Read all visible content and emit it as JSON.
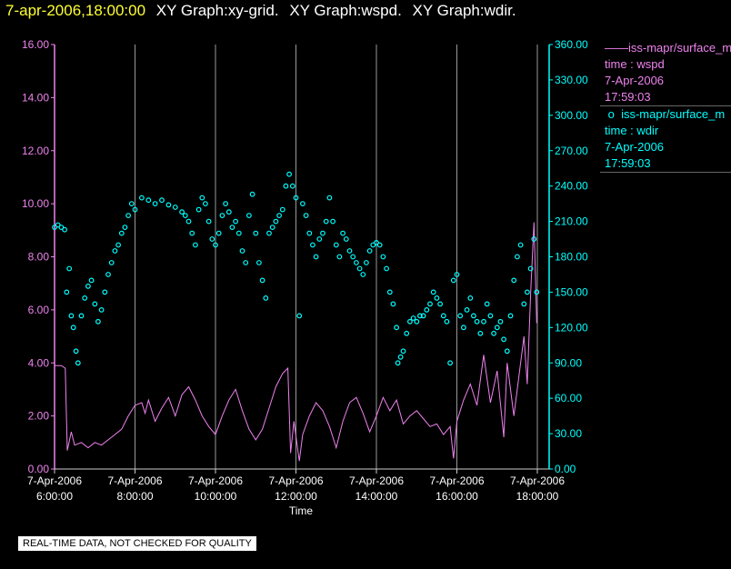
{
  "title": {
    "timestamp": "7-apr-2006,18:00:00",
    "graphs": [
      "XY Graph:xy-grid.",
      "XY Graph:wspd.",
      "XY Graph:wdir."
    ]
  },
  "legend": [
    {
      "marker": "line",
      "color": "#ee82ee",
      "label": "iss-mapr/surface_m",
      "lines": [
        "time : wspd",
        "7-Apr-2006",
        "17:59:03"
      ]
    },
    {
      "marker": "circle",
      "color": "#00ffff",
      "label": "iss-mapr/surface_m",
      "lines": [
        "time : wdir",
        "7-Apr-2006",
        "17:59:03"
      ]
    }
  ],
  "note": "REAL-TIME DATA, NOT CHECKED FOR QUALITY",
  "chart_data": {
    "type": "line",
    "xlabel": "Time",
    "x_ticks": [
      {
        "date": "7-Apr-2006",
        "time": "6:00:00"
      },
      {
        "date": "7-Apr-2006",
        "time": "8:00:00"
      },
      {
        "date": "7-Apr-2006",
        "time": "10:00:00"
      },
      {
        "date": "7-Apr-2006",
        "time": "12:00:00"
      },
      {
        "date": "7-Apr-2006",
        "time": "14:00:00"
      },
      {
        "date": "7-Apr-2006",
        "time": "16:00:00"
      },
      {
        "date": "7-Apr-2006",
        "time": "18:00:00"
      }
    ],
    "xlim": [
      "7-Apr-2006 6:00:00",
      "7-Apr-2006 18:00:00"
    ],
    "grid": "vertical lines at each x tick",
    "left_axis": {
      "color": "#ee82ee",
      "ylim": [
        0,
        16
      ],
      "tick_labels": [
        "0.00",
        "2.00",
        "4.00",
        "6.00",
        "8.00",
        "10.00",
        "12.00",
        "14.00",
        "16.00"
      ]
    },
    "right_axis": {
      "color": "#00ffff",
      "ylim": [
        0,
        360
      ],
      "tick_labels": [
        "0.00",
        "30.00",
        "60.00",
        "90.00",
        "120.00",
        "150.00",
        "180.00",
        "210.00",
        "240.00",
        "270.00",
        "300.00",
        "330.00",
        "360.00"
      ]
    },
    "series": [
      {
        "axis": "left",
        "style": "line",
        "color": "#ee82ee",
        "points": [
          [
            "06:00",
            3.9
          ],
          [
            "06:10",
            3.9
          ],
          [
            "06:16",
            3.8
          ],
          [
            "06:19",
            0.7
          ],
          [
            "06:25",
            1.4
          ],
          [
            "06:30",
            0.9
          ],
          [
            "06:40",
            1.0
          ],
          [
            "06:50",
            0.8
          ],
          [
            "07:00",
            1.0
          ],
          [
            "07:10",
            0.9
          ],
          [
            "07:20",
            1.1
          ],
          [
            "07:30",
            1.3
          ],
          [
            "07:40",
            1.5
          ],
          [
            "07:50",
            2.0
          ],
          [
            "08:00",
            2.4
          ],
          [
            "08:10",
            2.5
          ],
          [
            "08:15",
            2.1
          ],
          [
            "08:20",
            2.6
          ],
          [
            "08:30",
            1.8
          ],
          [
            "08:40",
            2.3
          ],
          [
            "08:50",
            2.7
          ],
          [
            "09:00",
            2.0
          ],
          [
            "09:10",
            2.8
          ],
          [
            "09:20",
            3.1
          ],
          [
            "09:30",
            2.6
          ],
          [
            "09:40",
            2.0
          ],
          [
            "09:50",
            1.6
          ],
          [
            "10:00",
            1.3
          ],
          [
            "10:10",
            2.0
          ],
          [
            "10:20",
            2.6
          ],
          [
            "10:30",
            3.0
          ],
          [
            "10:40",
            2.2
          ],
          [
            "10:50",
            1.5
          ],
          [
            "11:00",
            1.1
          ],
          [
            "11:10",
            1.5
          ],
          [
            "11:20",
            2.3
          ],
          [
            "11:30",
            3.1
          ],
          [
            "11:40",
            3.6
          ],
          [
            "11:48",
            3.8
          ],
          [
            "11:52",
            0.6
          ],
          [
            "11:57",
            1.8
          ],
          [
            "12:05",
            0.3
          ],
          [
            "12:10",
            1.3
          ],
          [
            "12:20",
            2.0
          ],
          [
            "12:30",
            2.5
          ],
          [
            "12:40",
            2.2
          ],
          [
            "12:50",
            1.6
          ],
          [
            "13:00",
            0.8
          ],
          [
            "13:10",
            1.8
          ],
          [
            "13:20",
            2.5
          ],
          [
            "13:30",
            2.7
          ],
          [
            "13:40",
            2.1
          ],
          [
            "13:50",
            1.4
          ],
          [
            "14:00",
            2.0
          ],
          [
            "14:10",
            2.7
          ],
          [
            "14:20",
            2.2
          ],
          [
            "14:30",
            2.6
          ],
          [
            "14:40",
            1.7
          ],
          [
            "14:50",
            2.0
          ],
          [
            "15:00",
            2.2
          ],
          [
            "15:10",
            1.9
          ],
          [
            "15:20",
            1.6
          ],
          [
            "15:30",
            1.7
          ],
          [
            "15:40",
            1.3
          ],
          [
            "15:50",
            1.6
          ],
          [
            "15:55",
            0.4
          ],
          [
            "16:00",
            1.8
          ],
          [
            "16:10",
            2.6
          ],
          [
            "16:20",
            3.2
          ],
          [
            "16:30",
            2.4
          ],
          [
            "16:40",
            4.3
          ],
          [
            "16:50",
            2.5
          ],
          [
            "17:00",
            3.7
          ],
          [
            "17:10",
            1.2
          ],
          [
            "17:15",
            4.0
          ],
          [
            "17:25",
            2.0
          ],
          [
            "17:30",
            3.0
          ],
          [
            "17:40",
            5.0
          ],
          [
            "17:45",
            3.2
          ],
          [
            "17:50",
            6.6
          ],
          [
            "17:55",
            9.3
          ],
          [
            "17:59",
            5.5
          ]
        ]
      },
      {
        "axis": "right",
        "style": "scatter",
        "color": "#00ffff",
        "points": [
          [
            "06:00",
            205
          ],
          [
            "06:05",
            207
          ],
          [
            "06:10",
            205
          ],
          [
            "06:15",
            203
          ],
          [
            "06:18",
            150
          ],
          [
            "06:22",
            170
          ],
          [
            "06:25",
            130
          ],
          [
            "06:28",
            120
          ],
          [
            "06:32",
            100
          ],
          [
            "06:35",
            90
          ],
          [
            "06:40",
            130
          ],
          [
            "06:45",
            145
          ],
          [
            "06:50",
            155
          ],
          [
            "06:55",
            160
          ],
          [
            "07:00",
            140
          ],
          [
            "07:05",
            125
          ],
          [
            "07:10",
            135
          ],
          [
            "07:15",
            150
          ],
          [
            "07:20",
            165
          ],
          [
            "07:25",
            175
          ],
          [
            "07:30",
            185
          ],
          [
            "07:35",
            190
          ],
          [
            "07:40",
            200
          ],
          [
            "07:45",
            205
          ],
          [
            "07:50",
            215
          ],
          [
            "07:55",
            225
          ],
          [
            "08:00",
            220
          ],
          [
            "08:10",
            230
          ],
          [
            "08:20",
            228
          ],
          [
            "08:30",
            225
          ],
          [
            "08:40",
            228
          ],
          [
            "08:50",
            224
          ],
          [
            "09:00",
            222
          ],
          [
            "09:10",
            218
          ],
          [
            "09:15",
            215
          ],
          [
            "09:20",
            210
          ],
          [
            "09:25",
            200
          ],
          [
            "09:30",
            190
          ],
          [
            "09:35",
            220
          ],
          [
            "09:40",
            230
          ],
          [
            "09:45",
            225
          ],
          [
            "09:50",
            210
          ],
          [
            "09:55",
            195
          ],
          [
            "10:00",
            190
          ],
          [
            "10:05",
            200
          ],
          [
            "10:10",
            215
          ],
          [
            "10:15",
            225
          ],
          [
            "10:20",
            218
          ],
          [
            "10:25",
            205
          ],
          [
            "10:30",
            210
          ],
          [
            "10:35",
            200
          ],
          [
            "10:40",
            185
          ],
          [
            "10:45",
            175
          ],
          [
            "10:50",
            215
          ],
          [
            "10:55",
            233
          ],
          [
            "11:00",
            200
          ],
          [
            "11:05",
            175
          ],
          [
            "11:10",
            160
          ],
          [
            "11:15",
            145
          ],
          [
            "11:20",
            200
          ],
          [
            "11:25",
            205
          ],
          [
            "11:30",
            210
          ],
          [
            "11:35",
            215
          ],
          [
            "11:40",
            220
          ],
          [
            "11:45",
            240
          ],
          [
            "11:50",
            250
          ],
          [
            "11:55",
            240
          ],
          [
            "12:00",
            230
          ],
          [
            "12:05",
            130
          ],
          [
            "12:10",
            225
          ],
          [
            "12:15",
            215
          ],
          [
            "12:20",
            200
          ],
          [
            "12:25",
            190
          ],
          [
            "12:30",
            180
          ],
          [
            "12:35",
            195
          ],
          [
            "12:40",
            200
          ],
          [
            "12:45",
            210
          ],
          [
            "12:50",
            230
          ],
          [
            "12:55",
            210
          ],
          [
            "13:00",
            190
          ],
          [
            "13:05",
            180
          ],
          [
            "13:10",
            200
          ],
          [
            "13:15",
            195
          ],
          [
            "13:20",
            185
          ],
          [
            "13:25",
            180
          ],
          [
            "13:30",
            175
          ],
          [
            "13:35",
            170
          ],
          [
            "13:40",
            165
          ],
          [
            "13:45",
            175
          ],
          [
            "13:50",
            185
          ],
          [
            "13:55",
            190
          ],
          [
            "14:00",
            192
          ],
          [
            "14:05",
            190
          ],
          [
            "14:10",
            180
          ],
          [
            "14:15",
            170
          ],
          [
            "14:20",
            150
          ],
          [
            "14:25",
            140
          ],
          [
            "14:30",
            120
          ],
          [
            "14:32",
            90
          ],
          [
            "14:36",
            95
          ],
          [
            "14:40",
            100
          ],
          [
            "14:45",
            115
          ],
          [
            "14:50",
            125
          ],
          [
            "14:55",
            128
          ],
          [
            "15:00",
            125
          ],
          [
            "15:05",
            130
          ],
          [
            "15:10",
            130
          ],
          [
            "15:15",
            135
          ],
          [
            "15:20",
            140
          ],
          [
            "15:25",
            150
          ],
          [
            "15:30",
            145
          ],
          [
            "15:35",
            140
          ],
          [
            "15:40",
            130
          ],
          [
            "15:45",
            125
          ],
          [
            "15:50",
            90
          ],
          [
            "15:55",
            160
          ],
          [
            "16:00",
            165
          ],
          [
            "16:05",
            130
          ],
          [
            "16:10",
            120
          ],
          [
            "16:15",
            135
          ],
          [
            "16:20",
            145
          ],
          [
            "16:25",
            130
          ],
          [
            "16:30",
            125
          ],
          [
            "16:35",
            115
          ],
          [
            "16:40",
            125
          ],
          [
            "16:45",
            140
          ],
          [
            "16:50",
            130
          ],
          [
            "16:55",
            115
          ],
          [
            "17:00",
            120
          ],
          [
            "17:05",
            125
          ],
          [
            "17:10",
            110
          ],
          [
            "17:15",
            100
          ],
          [
            "17:20",
            130
          ],
          [
            "17:25",
            160
          ],
          [
            "17:30",
            180
          ],
          [
            "17:35",
            190
          ],
          [
            "17:40",
            140
          ],
          [
            "17:45",
            150
          ],
          [
            "17:50",
            170
          ],
          [
            "17:55",
            195
          ],
          [
            "17:59",
            150
          ]
        ]
      }
    ]
  }
}
